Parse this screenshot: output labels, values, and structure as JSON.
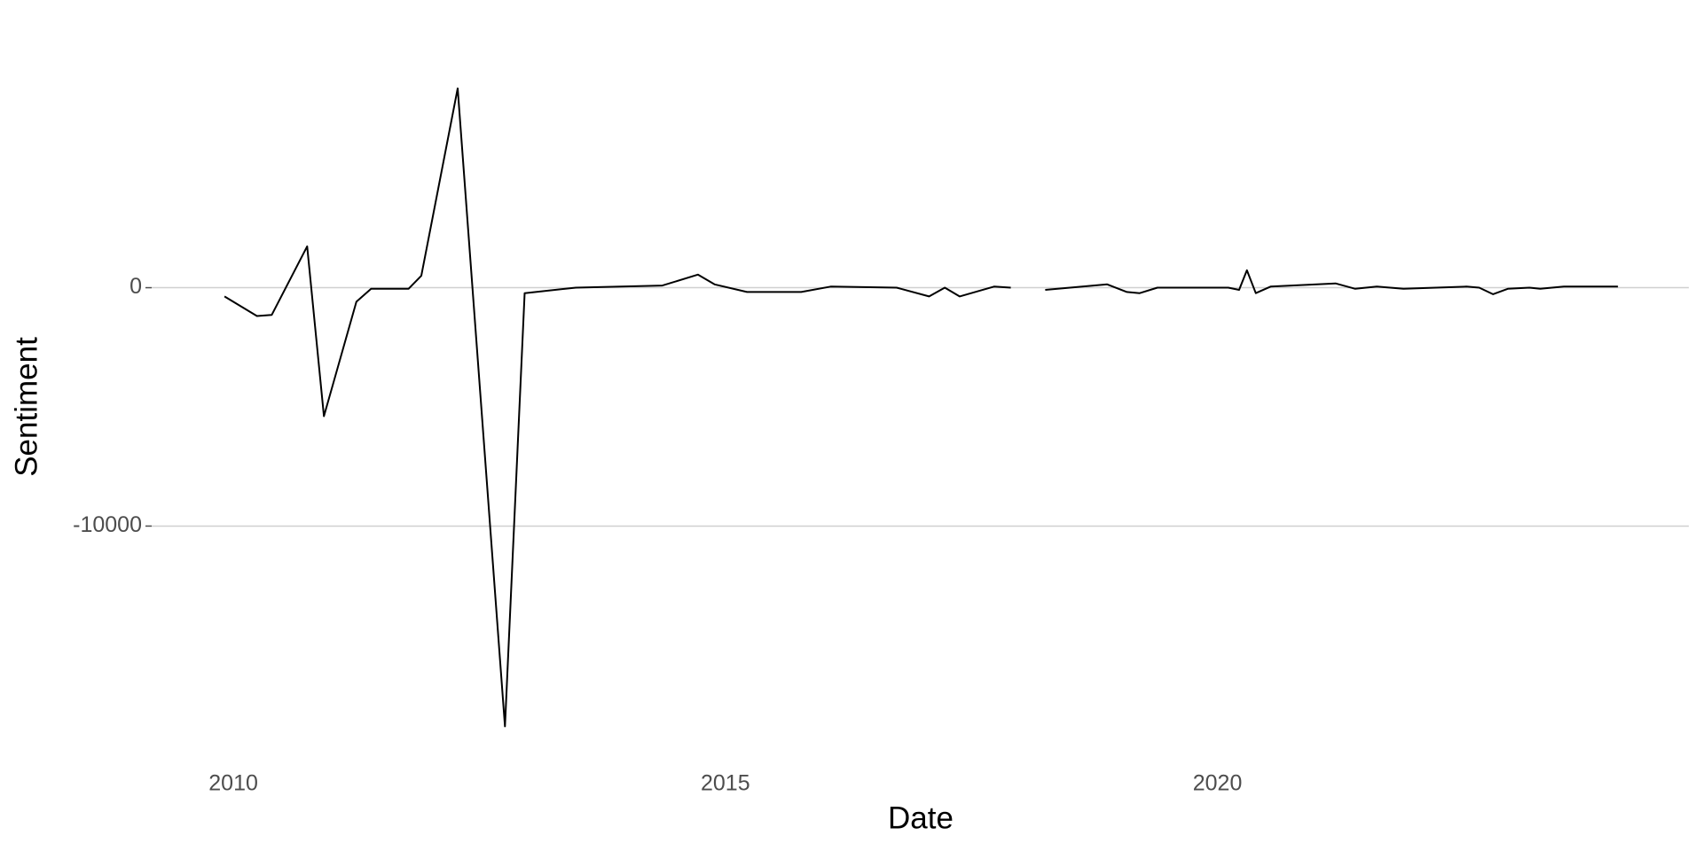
{
  "chart_data": {
    "type": "line",
    "x_label": "Date",
    "y_label": "Sentiment",
    "x": [
      2009.91,
      2010.24,
      2010.39,
      2010.75,
      2010.92,
      2011.25,
      2011.4,
      2011.78,
      2011.91,
      2012.28,
      2012.76,
      2012.96,
      2013.48,
      2014.36,
      2014.72,
      2014.89,
      2015.22,
      2015.77,
      2016.07,
      2016.74,
      2017.07,
      2017.23,
      2017.38,
      2017.73,
      2017.9,
      2018.08,
      2018.25,
      2018.88,
      2019.08,
      2019.21,
      2019.39,
      2020.11,
      2020.22,
      2020.3,
      2020.39,
      2020.54,
      2021.2,
      2021.4,
      2021.62,
      2021.89,
      2022.53,
      2022.66,
      2022.8,
      2022.95,
      2023.17,
      2023.28,
      2023.52,
      2024.07
    ],
    "series": [
      {
        "color": "#000000",
        "values": [
          -365,
          -1190,
          -1140,
          1735,
          -5390,
          -590,
          -45,
          -45,
          500,
          8360,
          -18400,
          -230,
          0,
          90,
          550,
          140,
          -180,
          -180,
          45,
          0,
          -365,
          0,
          -365,
          45,
          0,
          null,
          -90,
          140,
          -180,
          -230,
          0,
          0,
          -90,
          730,
          -230,
          45,
          180,
          -45,
          45,
          -45,
          45,
          0,
          -275,
          -45,
          0,
          -45,
          45,
          45
        ]
      }
    ],
    "xlim": [
      2009.17,
      2024.79
    ],
    "xticks": [
      2010,
      2015,
      2020
    ],
    "ylim": [
      -19800,
      9800
    ],
    "yticks": [
      -10000,
      0
    ],
    "grid": true
  }
}
